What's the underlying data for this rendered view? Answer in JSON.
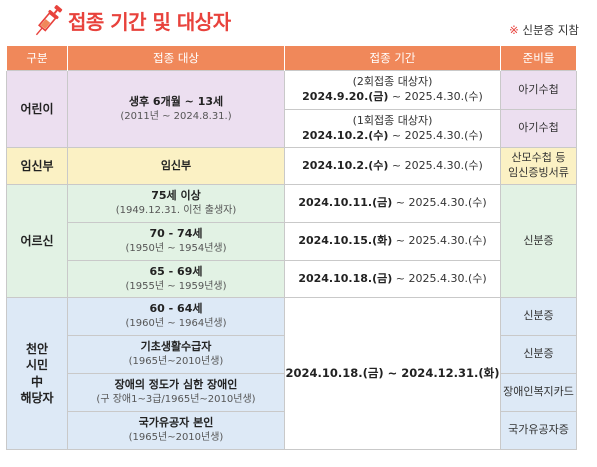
{
  "title": "접종 기간 및 대상자",
  "note": {
    "mark": "※",
    "text": " 신분증 지참"
  },
  "headers": {
    "group": "구분",
    "target": "접종 대상",
    "period": "접종 기간",
    "prep": "준비물"
  },
  "colors": {
    "header": "#f0885a",
    "title": "#e8423c",
    "child": "#ecdff0",
    "pregnant": "#fbf1c4",
    "elderly": "#e2f2e4",
    "local": "#dde9f6"
  },
  "icons": {
    "title_icon": "syringe-icon"
  },
  "child": {
    "group": "어린이",
    "target": "생후 6개월 ~ 13세",
    "target_sub": "(2011년 ~ 2024.8.31.)",
    "rows": [
      {
        "dose": "(2회접종 대상자)",
        "start": "2024.9.20.(금)",
        "end": " ~ 2025.4.30.(수)",
        "prep": "아기수첩"
      },
      {
        "dose": "(1회접종 대상자)",
        "start": "2024.10.2.(수)",
        "end": " ~ 2025.4.30.(수)",
        "prep": "아기수첩"
      }
    ]
  },
  "pregnant": {
    "group": "임신부",
    "target": "임신부",
    "start": "2024.10.2.(수)",
    "end": " ~ 2025.4.30.(수)",
    "prep_line1": "산모수첩 등",
    "prep_line2": "임신증빙서류"
  },
  "elderly": {
    "group": "어르신",
    "prep": "신분증",
    "rows": [
      {
        "target": "75세 이상",
        "target_sub": "(1949.12.31. 이전 출생자)",
        "start": "2024.10.11.(금)",
        "end": " ~ 2025.4.30.(수)"
      },
      {
        "target": "70 - 74세",
        "target_sub": "(1950년 ~ 1954년생)",
        "start": "2024.10.15.(화)",
        "end": " ~ 2025.4.30.(수)"
      },
      {
        "target": "65 - 69세",
        "target_sub": "(1955년 ~ 1959년생)",
        "start": "2024.10.18.(금)",
        "end": " ~ 2025.4.30.(수)"
      }
    ]
  },
  "local": {
    "group_lines": [
      "천안",
      "시민",
      "中",
      "해당자"
    ],
    "period": "2024.10.18.(금) ~ 2024.12.31.(화)",
    "rows": [
      {
        "target": "60 - 64세",
        "target_sub": "(1960년 ~ 1964년생)",
        "prep": "신분증"
      },
      {
        "target": "기초생활수급자",
        "target_sub": "(1965년~2010년생)",
        "prep": "신분증"
      },
      {
        "target": "장애의 정도가 심한 장애인",
        "target_sub": "(구 장애1~3급/1965년~2010년생)",
        "prep": "장애인복지카드"
      },
      {
        "target": "국가유공자 본인",
        "target_sub": "(1965년~2010년생)",
        "prep": "국가유공자증"
      }
    ]
  }
}
